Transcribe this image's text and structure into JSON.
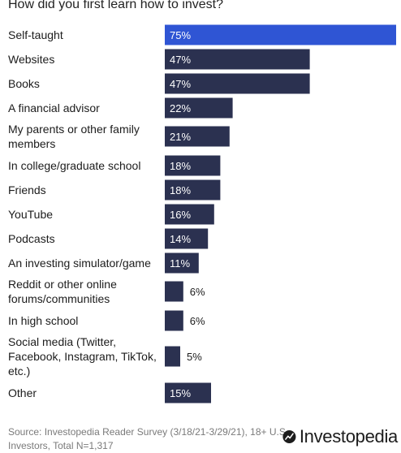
{
  "chart_data": {
    "type": "bar",
    "orientation": "horizontal",
    "title": "How did you first learn how to invest?",
    "categories": [
      [
        "Self-taught"
      ],
      [
        "Websites"
      ],
      [
        "Books"
      ],
      [
        "A financial advisor"
      ],
      [
        "My parents or other family",
        "members"
      ],
      [
        "In college/graduate school"
      ],
      [
        "Friends"
      ],
      [
        "YouTube"
      ],
      [
        "Podcasts"
      ],
      [
        "An investing simulator/game"
      ],
      [
        "Reddit or other online",
        "forums/communities"
      ],
      [
        "In high school"
      ],
      [
        "Social media (Twitter,",
        "Facebook, Instagram, TikTok,",
        "etc.)"
      ],
      [
        "Other"
      ]
    ],
    "values": [
      75,
      47,
      47,
      22,
      21,
      18,
      18,
      16,
      14,
      11,
      6,
      6,
      5,
      15
    ],
    "value_labels": [
      "75%",
      "47%",
      "47%",
      "22%",
      "21%",
      "18%",
      "18%",
      "16%",
      "14%",
      "11%",
      "6%",
      "6%",
      "5%",
      "15%"
    ],
    "xlim": [
      0,
      75
    ],
    "highlight_index": 0,
    "colors": {
      "highlight": "#2f55d4",
      "bar": "#2b3150"
    },
    "grid": false,
    "legend": "none"
  },
  "footer": {
    "source": "Source: Investopedia Reader Survey (3/18/21-3/29/21), 18+ U.S. Investors, Total N=1,317"
  },
  "logo": {
    "text": "Investopedia",
    "icon": "investopedia-logo-icon"
  }
}
